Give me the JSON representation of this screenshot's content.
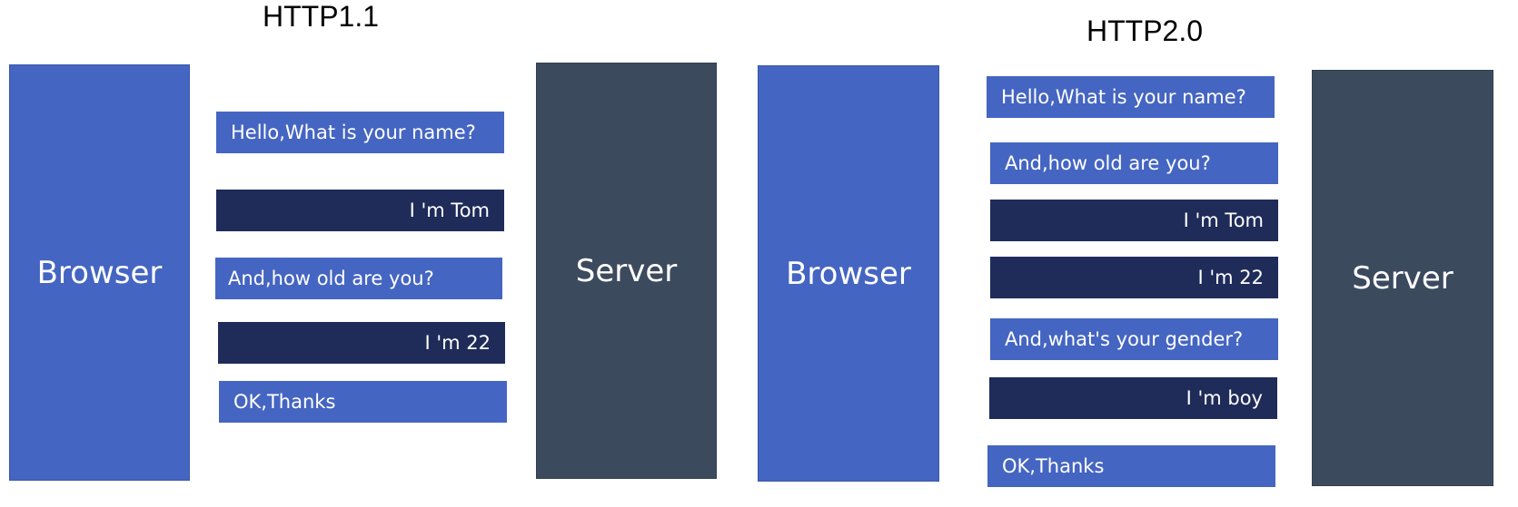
{
  "http11": {
    "title": "HTTP1.1",
    "browser_label": "Browser",
    "server_label": "Server",
    "messages": [
      {
        "text": "Hello,What is your name?",
        "kind": "request"
      },
      {
        "text": "I 'm Tom",
        "kind": "response"
      },
      {
        "text": "And,how old are you?",
        "kind": "request"
      },
      {
        "text": "I 'm 22",
        "kind": "response"
      },
      {
        "text": "OK,Thanks",
        "kind": "request"
      }
    ]
  },
  "http20": {
    "title": "HTTP2.0",
    "browser_label": "Browser",
    "server_label": "Server",
    "messages": [
      {
        "text": "Hello,What is your name?",
        "kind": "request"
      },
      {
        "text": "And,how old are you?",
        "kind": "request"
      },
      {
        "text": "I 'm Tom",
        "kind": "response"
      },
      {
        "text": "I 'm 22",
        "kind": "response"
      },
      {
        "text": "And,what's your gender?",
        "kind": "request"
      },
      {
        "text": "I 'm boy",
        "kind": "response"
      },
      {
        "text": "OK,Thanks",
        "kind": "request"
      }
    ]
  },
  "colors": {
    "request": "#4565c2",
    "response": "#1f2c5a",
    "browser": "#4565c2",
    "server": "#3c4a5e"
  }
}
